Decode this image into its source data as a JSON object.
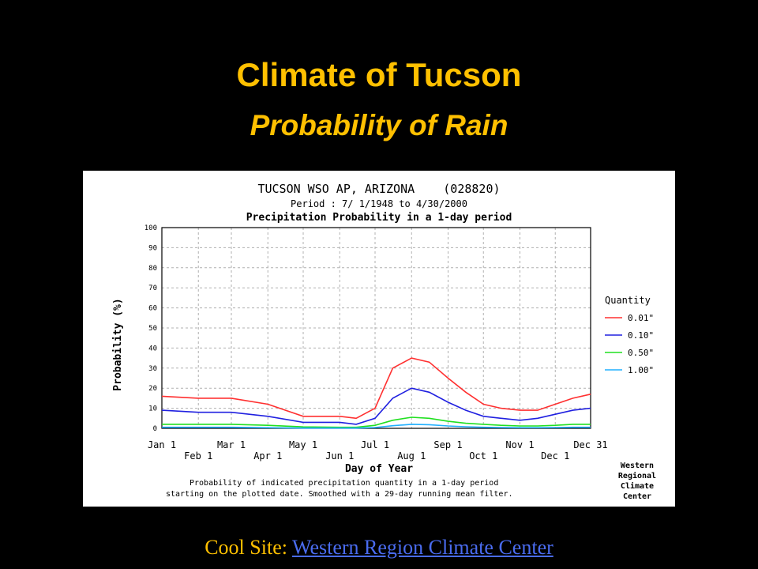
{
  "slide": {
    "title": "Climate of Tucson",
    "subtitle": "Probability of Rain"
  },
  "footer": {
    "prefix": "Cool Site:",
    "link_text": "Western Region Climate Center"
  },
  "chart_data": {
    "type": "line",
    "title": "TUCSON WSO AP, ARIZONA    (028820)",
    "subtitle": "Period : 7/ 1/1948 to 4/30/2000",
    "heading": "Precipitation Probability in a 1-day period",
    "xlabel": "Day of Year",
    "ylabel": "Probability (%)",
    "ylim": [
      0,
      100
    ],
    "yticks": [
      0,
      10,
      20,
      30,
      40,
      50,
      60,
      70,
      80,
      90,
      100
    ],
    "xlim": [
      1,
      365
    ],
    "xticks_top": [
      {
        "day": 1,
        "label": "Jan 1"
      },
      {
        "day": 60,
        "label": "Mar 1"
      },
      {
        "day": 121,
        "label": "May 1"
      },
      {
        "day": 182,
        "label": "Jul 1"
      },
      {
        "day": 244,
        "label": "Sep 1"
      },
      {
        "day": 305,
        "label": "Nov 1"
      },
      {
        "day": 365,
        "label": "Dec 31"
      }
    ],
    "xticks_bottom": [
      {
        "day": 32,
        "label": "Feb 1"
      },
      {
        "day": 91,
        "label": "Apr 1"
      },
      {
        "day": 152,
        "label": "Jun 1"
      },
      {
        "day": 213,
        "label": "Aug 1"
      },
      {
        "day": 274,
        "label": "Oct 1"
      },
      {
        "day": 335,
        "label": "Dec 1"
      }
    ],
    "grid": true,
    "legend_title": "Quantity",
    "legend_position": "right",
    "series": [
      {
        "name": "0.01\"",
        "color": "#ff3030",
        "x": [
          1,
          32,
          60,
          91,
          121,
          152,
          166,
          182,
          197,
          213,
          228,
          244,
          259,
          274,
          289,
          305,
          320,
          335,
          350,
          365
        ],
        "y": [
          16,
          15,
          15,
          12,
          6,
          6,
          5,
          10,
          30,
          35,
          33,
          25,
          18,
          12,
          10,
          9,
          9,
          12,
          15,
          17
        ]
      },
      {
        "name": "0.10\"",
        "color": "#2020e0",
        "x": [
          1,
          32,
          60,
          91,
          121,
          152,
          166,
          182,
          197,
          213,
          228,
          244,
          259,
          274,
          289,
          305,
          320,
          335,
          350,
          365
        ],
        "y": [
          9,
          8,
          8,
          6,
          3,
          3,
          2,
          5,
          15,
          20,
          18,
          13,
          9,
          6,
          5,
          4,
          5,
          7,
          9,
          10
        ]
      },
      {
        "name": "0.50\"",
        "color": "#20e020",
        "x": [
          1,
          32,
          60,
          91,
          121,
          152,
          166,
          182,
          197,
          213,
          228,
          244,
          259,
          274,
          289,
          305,
          320,
          335,
          350,
          365
        ],
        "y": [
          2,
          2,
          2,
          1.5,
          0.7,
          0.5,
          0.5,
          1.5,
          4,
          5.5,
          5,
          3.5,
          2.5,
          2,
          1.5,
          1.2,
          1.2,
          1.5,
          2,
          2
        ]
      },
      {
        "name": "1.00\"",
        "color": "#20b0ff",
        "x": [
          1,
          32,
          60,
          91,
          121,
          152,
          166,
          182,
          197,
          213,
          228,
          244,
          259,
          274,
          289,
          305,
          320,
          335,
          350,
          365
        ],
        "y": [
          0.5,
          0.5,
          0.5,
          0.3,
          0.1,
          0.1,
          0.1,
          0.4,
          1.3,
          2,
          1.8,
          1.2,
          0.8,
          0.5,
          0.4,
          0.3,
          0.3,
          0.4,
          0.5,
          0.5
        ]
      }
    ],
    "notes": [
      "Probability of indicated precipitation quantity in a 1-day period",
      "starting on the plotted date. Smoothed with a 29-day running mean filter."
    ],
    "credit": [
      "Western",
      "Regional",
      "Climate",
      "Center"
    ]
  }
}
